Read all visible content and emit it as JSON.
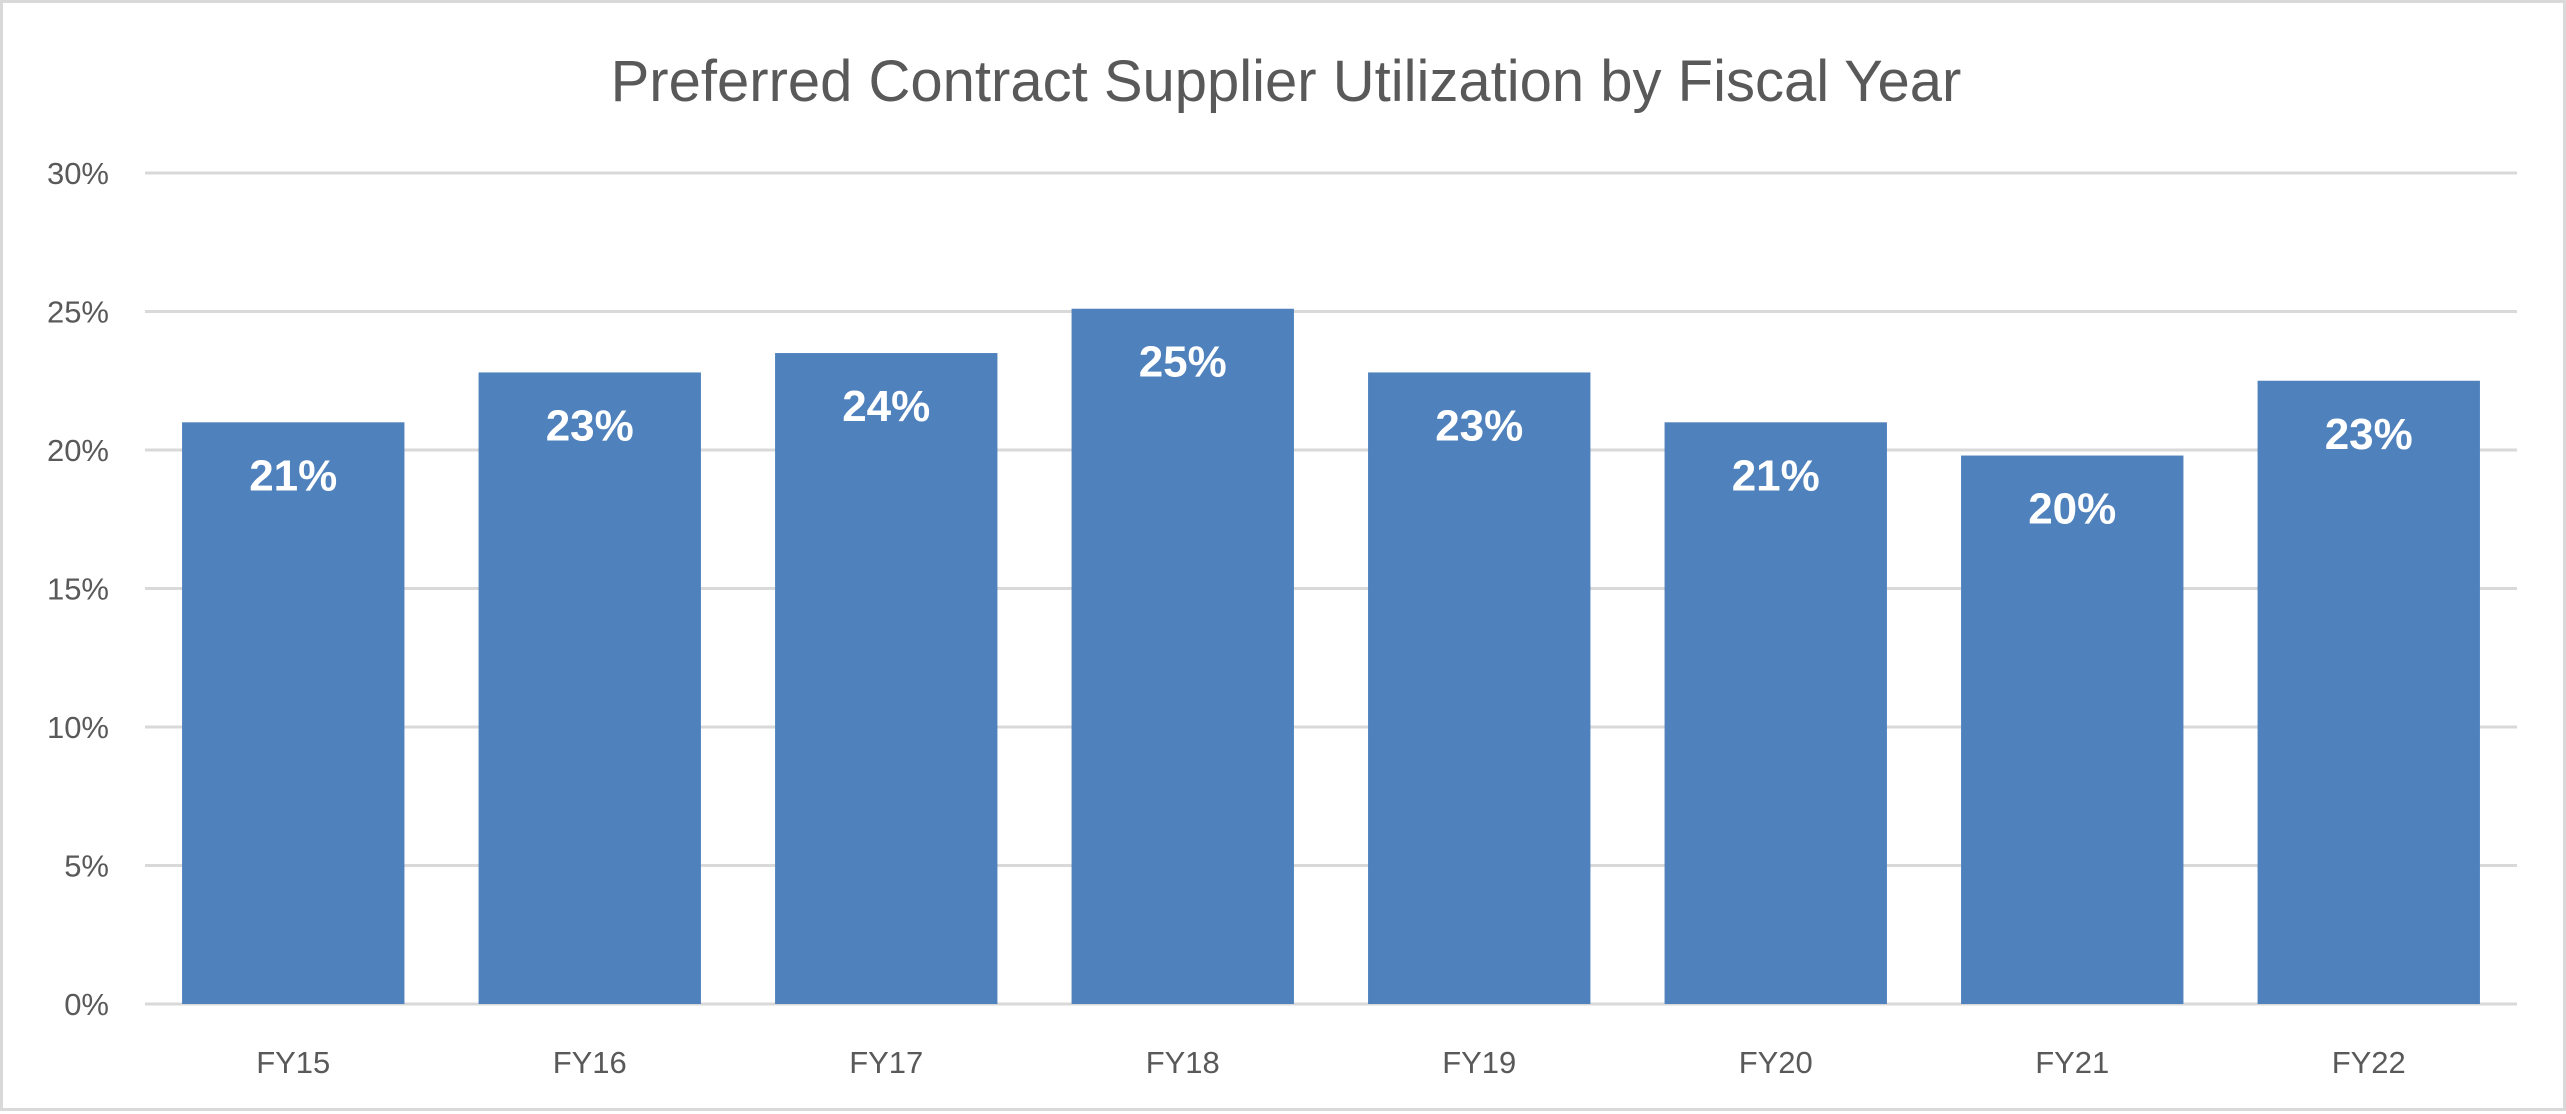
{
  "chart_data": {
    "type": "bar",
    "title": "Preferred Contract Supplier Utilization by Fiscal Year",
    "xlabel": "",
    "ylabel": "",
    "categories": [
      "FY15",
      "FY16",
      "FY17",
      "FY18",
      "FY19",
      "FY20",
      "FY21",
      "FY22"
    ],
    "values": [
      21.0,
      22.8,
      23.5,
      25.1,
      22.8,
      21.0,
      19.8,
      22.5
    ],
    "data_labels": [
      "21%",
      "23%",
      "24%",
      "25%",
      "23%",
      "21%",
      "20%",
      "23%"
    ],
    "ylim": [
      0,
      30
    ],
    "yticks": [
      "0%",
      "5%",
      "10%",
      "15%",
      "20%",
      "25%",
      "30%"
    ],
    "grid": true,
    "legend": "none",
    "colors": {
      "bar": "#4f81bd",
      "grid": "#d9d9d9",
      "text": "#595959"
    }
  }
}
